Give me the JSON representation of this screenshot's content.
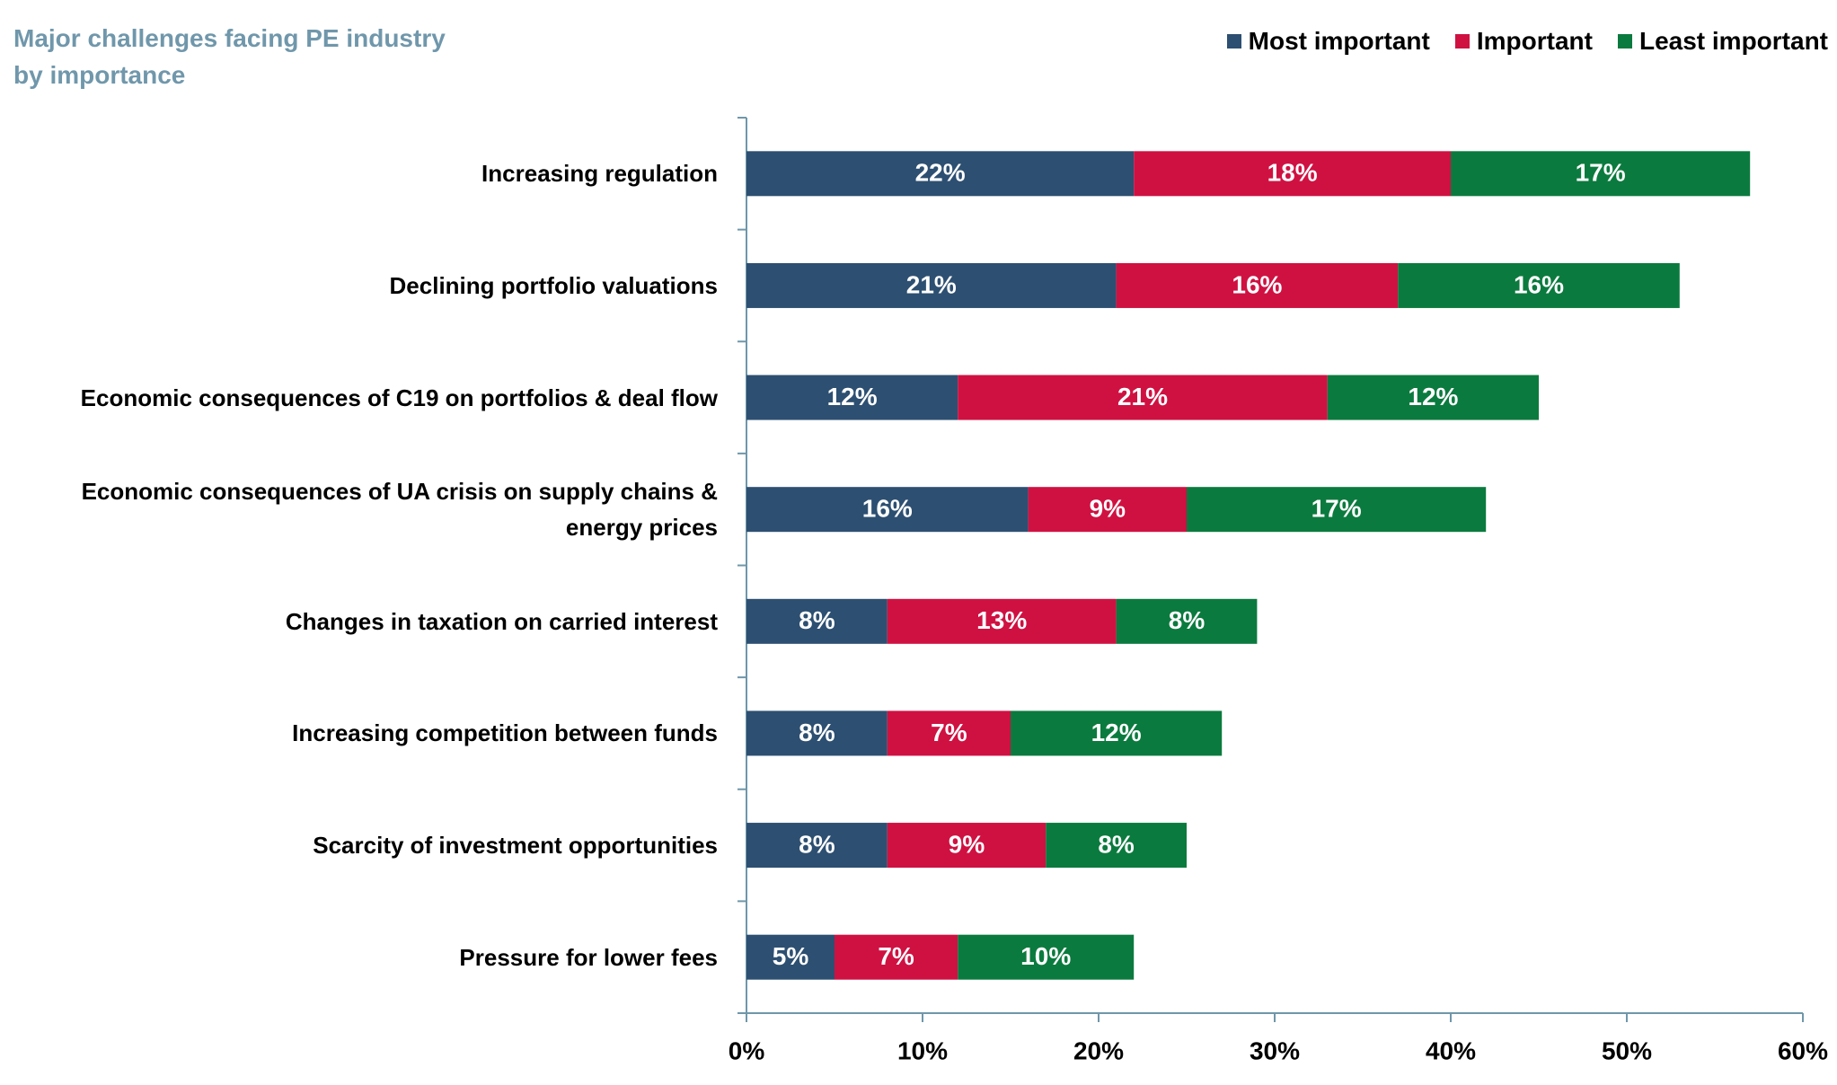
{
  "chart_data": {
    "type": "stacked-bar-horizontal",
    "title": "Major challenges facing PE industry by importance",
    "categories": [
      "Increasing regulation",
      "Declining portfolio valuations",
      "Economic consequences of C19 on portfolios & deal flow",
      "Economic consequences of UA crisis on supply chains & energy prices",
      "Changes in taxation on carried interest",
      "Increasing competition between funds",
      "Scarcity of investment opportunities",
      "Pressure for lower fees"
    ],
    "series": [
      {
        "name": "Most important",
        "color": "#2d4f71",
        "values": [
          22,
          21,
          12,
          16,
          8,
          8,
          8,
          5
        ],
        "value_labels": [
          "22%",
          "21%",
          "12%",
          "16%",
          "8%",
          "8%",
          "8%",
          "5%"
        ]
      },
      {
        "name": "Important",
        "color": "#cf1142",
        "values": [
          18,
          16,
          21,
          9,
          13,
          7,
          9,
          7
        ],
        "value_labels": [
          "18%",
          "16%",
          "21%",
          "9%",
          "13%",
          "7%",
          "9%",
          "7%"
        ]
      },
      {
        "name": "Least important",
        "color": "#0b7a3e",
        "values": [
          17,
          16,
          12,
          17,
          8,
          12,
          8,
          10
        ],
        "value_labels": [
          "17%",
          "16%",
          "12%",
          "17%",
          "8%",
          "12%",
          "8%",
          "10%"
        ]
      }
    ],
    "xlim": [
      0,
      60
    ],
    "xticks": [
      {
        "value": 0,
        "label": "0%"
      },
      {
        "value": 10,
        "label": "10%"
      },
      {
        "value": 20,
        "label": "20%"
      },
      {
        "value": 30,
        "label": "30%"
      },
      {
        "value": 40,
        "label": "40%"
      },
      {
        "value": 50,
        "label": "50%"
      },
      {
        "value": 60,
        "label": "60%"
      }
    ],
    "legend": "top-right"
  }
}
